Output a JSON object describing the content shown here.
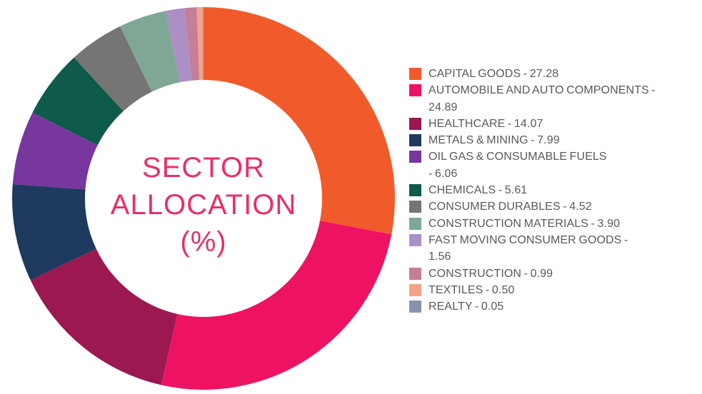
{
  "title": {
    "lines": "SECTOR\nALLOCATION\n(%)",
    "color": "#E72F6B"
  },
  "chart_data": {
    "type": "pie",
    "variant": "donut",
    "title": "SECTOR ALLOCATION (%)",
    "legend_position": "right",
    "start_angle_deg": -90,
    "direction": "clockwise",
    "inner_radius_ratio": 0.62,
    "categories": [
      "CAPITAL GOODS",
      "AUTOMOBILE AND AUTO COMPONENTS",
      "HEALTHCARE",
      "METALS & MINING",
      "OIL GAS & CONSUMABLE FUELS",
      "CHEMICALS",
      "CONSUMER DURABLES",
      "CONSTRUCTION MATERIALS",
      "FAST MOVING CONSUMER GOODS",
      "CONSTRUCTION",
      "TEXTILES",
      "REALTY"
    ],
    "values": [
      27.28,
      24.89,
      14.07,
      7.99,
      6.06,
      5.61,
      4.52,
      3.9,
      1.56,
      0.99,
      0.5,
      0.05
    ],
    "colors": [
      "#F15B2B",
      "#ED1362",
      "#9B1850",
      "#1E3A5F",
      "#77379D",
      "#0E5A4B",
      "#757575",
      "#7EA795",
      "#AB8FC5",
      "#C57E97",
      "#F5A287",
      "#8894AE"
    ]
  },
  "legend": {
    "items": [
      {
        "label": "CAPITAL GOODS",
        "value": "27.28",
        "display": "CAPITAL GOODS - 27.28",
        "color": "#F15B2B"
      },
      {
        "label": "AUTOMOBILE AND AUTO COMPONENTS",
        "value": "24.89",
        "display": "AUTOMOBILE AND AUTO COMPONENTS -\n24.89",
        "color": "#ED1362"
      },
      {
        "label": "HEALTHCARE",
        "value": "14.07",
        "display": "HEALTHCARE - 14.07",
        "color": "#9B1850"
      },
      {
        "label": "METALS & MINING",
        "value": "7.99",
        "display": "METALS & MINING - 7.99",
        "color": "#1E3A5F"
      },
      {
        "label": "OIL GAS & CONSUMABLE FUELS",
        "value": "6.06",
        "display": "OIL GAS & CONSUMABLE FUELS\n- 6.06",
        "color": "#77379D"
      },
      {
        "label": "CHEMICALS",
        "value": "5.61",
        "display": "CHEMICALS - 5.61",
        "color": "#0E5A4B"
      },
      {
        "label": "CONSUMER DURABLES",
        "value": "4.52",
        "display": "CONSUMER DURABLES - 4.52",
        "color": "#757575"
      },
      {
        "label": "CONSTRUCTION MATERIALS",
        "value": "3.90",
        "display": "CONSTRUCTION MATERIALS - 3.90",
        "color": "#7EA795"
      },
      {
        "label": "FAST MOVING CONSUMER GOODS",
        "value": "1.56",
        "display": "FAST MOVING CONSUMER GOODS -\n1.56",
        "color": "#AB8FC5"
      },
      {
        "label": "CONSTRUCTION",
        "value": "0.99",
        "display": "CONSTRUCTION - 0.99",
        "color": "#C57E97"
      },
      {
        "label": "TEXTILES",
        "value": "0.50",
        "display": "TEXTILES - 0.50",
        "color": "#F5A287"
      },
      {
        "label": "REALTY",
        "value": "0.05",
        "display": "REALTY - 0.05",
        "color": "#8894AE"
      }
    ]
  }
}
